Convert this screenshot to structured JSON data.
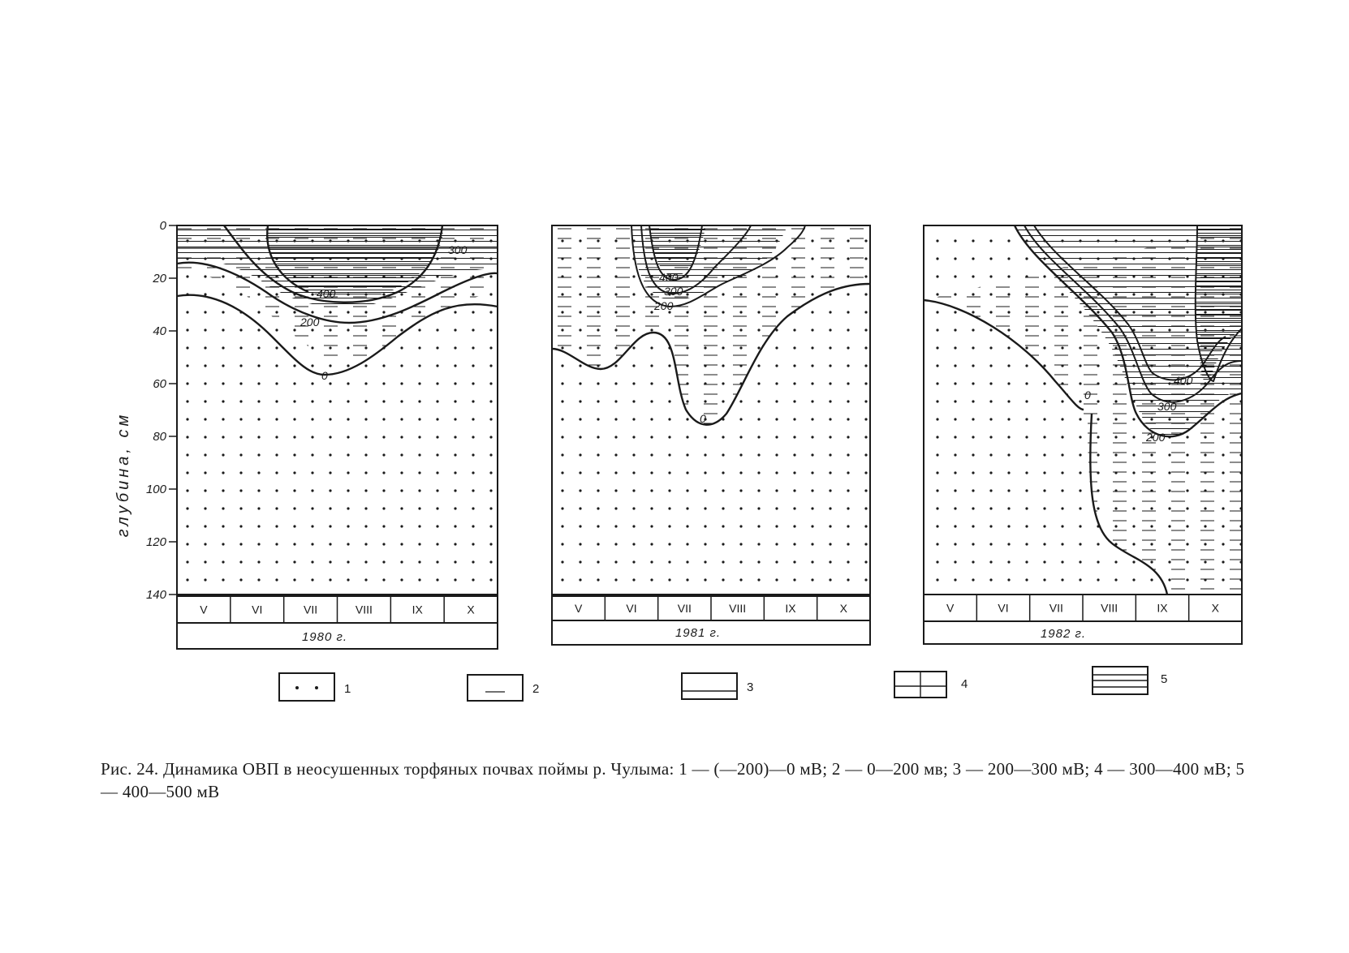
{
  "figure": {
    "ylabel": "глубина, см",
    "caption": "Рис. 24. Динамика ОВП в неосушенных торфяных почвах поймы р. Чулыма: 1 — (—200)—0 мВ; 2 — 0—200 мв; 3 — 200—300 мВ; 4 — 300—400 мВ; 5 — 400—500 мВ"
  },
  "chart_data": [
    {
      "type": "heatmap",
      "year_label": "1980 г.",
      "months": [
        "V",
        "VI",
        "VII",
        "VIII",
        "IX",
        "X"
      ],
      "ylim": [
        0,
        140
      ],
      "yticks": [
        "0",
        "20",
        "40",
        "60",
        "80",
        "100",
        "120",
        "140"
      ],
      "isolines": [
        {
          "label": "0",
          "depths": [
            26,
            29,
            38,
            55,
            56,
            42,
            29,
            26
          ]
        },
        {
          "label": "200",
          "depths": [
            14,
            17,
            26,
            34,
            34,
            29,
            19,
            17
          ]
        },
        {
          "label": "300",
          "depths": [
            10,
            10,
            10,
            10,
            10,
            10,
            10,
            10
          ]
        },
        {
          "label": "400",
          "depths": [
            0,
            12,
            26,
            30,
            30,
            24,
            10,
            0
          ]
        }
      ]
    },
    {
      "type": "heatmap",
      "year_label": "1981 г.",
      "months": [
        "V",
        "VI",
        "VII",
        "VIII",
        "IX",
        "X"
      ],
      "ylim": [
        0,
        140
      ],
      "isolines": [
        {
          "label": "0",
          "depths": [
            46,
            54,
            41,
            74,
            72,
            48,
            30,
            22
          ]
        },
        {
          "label": "200",
          "depths": [
            0,
            30,
            33,
            28,
            23,
            0
          ]
        },
        {
          "label": "300",
          "depths": [
            0,
            27,
            29,
            25,
            0
          ]
        },
        {
          "label": "400",
          "depths": [
            0,
            22,
            25,
            21,
            0
          ]
        }
      ]
    },
    {
      "type": "heatmap",
      "year_label": "1982 г.",
      "months": [
        "V",
        "VI",
        "VII",
        "VIII",
        "IX",
        "X"
      ],
      "ylim": [
        0,
        140
      ],
      "isolines": [
        {
          "label": "0",
          "depths": [
            29,
            33,
            42,
            60,
            70,
            120,
            137
          ]
        },
        {
          "label": "200",
          "depths": [
            0,
            26,
            38,
            54,
            80,
            82,
            67
          ]
        },
        {
          "label": "300",
          "depths": [
            0,
            24,
            36,
            52,
            70,
            72,
            55
          ]
        },
        {
          "label": "400",
          "depths": [
            0,
            22,
            34,
            50,
            62,
            58,
            40
          ]
        }
      ]
    }
  ],
  "legend": [
    {
      "label": "1",
      "pattern": "dots"
    },
    {
      "label": "2",
      "pattern": "dash"
    },
    {
      "label": "3",
      "pattern": "one-line"
    },
    {
      "label": "4",
      "pattern": "grid"
    },
    {
      "label": "5",
      "pattern": "three-lines"
    }
  ],
  "colors": {
    "ink": "#1a1a1a",
    "paper": "#ffffff"
  }
}
